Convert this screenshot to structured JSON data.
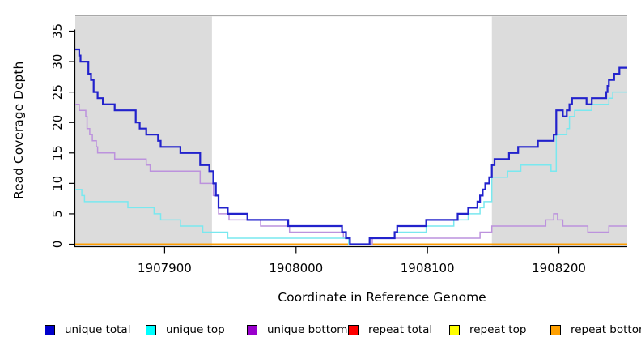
{
  "chart_data": {
    "type": "line",
    "subtype": "step-coverage-plot",
    "title": "",
    "xlabel": "Coordinate in Reference Genome",
    "ylabel": "Read Coverage Depth",
    "x_range": [
      1907832,
      1908252
    ],
    "y_range": [
      0,
      35
    ],
    "x_ticks": [
      "1907900",
      "1908000",
      "1908100",
      "1908200"
    ],
    "x_tick_values": [
      1907900,
      1908000,
      1908100,
      1908200
    ],
    "y_ticks": [
      "0",
      "5",
      "10",
      "15",
      "20",
      "25",
      "30",
      "35"
    ],
    "y_tick_values": [
      0,
      5,
      10,
      15,
      20,
      25,
      30,
      35
    ],
    "grid": false,
    "shade_color": "#dcdcdc",
    "top_border_color": "#a8a8a8",
    "shaded_regions": [
      {
        "x0": 1907832,
        "x1": 1907936
      },
      {
        "x0": 1908149,
        "x1": 1908252
      }
    ],
    "series": [
      {
        "name": "unique total",
        "color": "#2222cc",
        "legend_color": "#0000cc",
        "width": 2.2,
        "z": 6,
        "points": [
          [
            1907832,
            32
          ],
          [
            1907835,
            31
          ],
          [
            1907836,
            30
          ],
          [
            1907842,
            28
          ],
          [
            1907844,
            27
          ],
          [
            1907846,
            25
          ],
          [
            1907849,
            24
          ],
          [
            1907853,
            23
          ],
          [
            1907862,
            22
          ],
          [
            1907878,
            20
          ],
          [
            1907881,
            19
          ],
          [
            1907886,
            18
          ],
          [
            1907895,
            17
          ],
          [
            1907897,
            16
          ],
          [
            1907912,
            15
          ],
          [
            1907927,
            13
          ],
          [
            1907934,
            12
          ],
          [
            1907937,
            10
          ],
          [
            1907939,
            8
          ],
          [
            1907941,
            6
          ],
          [
            1907948,
            5
          ],
          [
            1907963,
            4
          ],
          [
            1907994,
            3
          ],
          [
            1908035,
            2
          ],
          [
            1908038,
            1
          ],
          [
            1908041,
            0
          ],
          [
            1908056,
            1
          ],
          [
            1908075,
            2
          ],
          [
            1908077,
            3
          ],
          [
            1908099,
            4
          ],
          [
            1908123,
            5
          ],
          [
            1908131,
            6
          ],
          [
            1908138,
            7
          ],
          [
            1908140,
            8
          ],
          [
            1908142,
            9
          ],
          [
            1908144,
            10
          ],
          [
            1908147,
            11
          ],
          [
            1908149,
            13
          ],
          [
            1908151,
            14
          ],
          [
            1908162,
            15
          ],
          [
            1908169,
            16
          ],
          [
            1908184,
            17
          ],
          [
            1908196,
            18
          ],
          [
            1908198,
            22
          ],
          [
            1908203,
            21
          ],
          [
            1908206,
            22
          ],
          [
            1908208,
            23
          ],
          [
            1908210,
            24
          ],
          [
            1908221,
            23
          ],
          [
            1908225,
            24
          ],
          [
            1908236,
            25
          ],
          [
            1908237,
            26
          ],
          [
            1908238,
            27
          ],
          [
            1908242,
            28
          ],
          [
            1908246,
            29
          ]
        ]
      },
      {
        "name": "unique top",
        "color": "#79e8ef",
        "legend_color": "#00ffff",
        "width": 1.5,
        "z": 5,
        "points": [
          [
            1907832,
            9
          ],
          [
            1907837,
            8
          ],
          [
            1907839,
            7
          ],
          [
            1907872,
            6
          ],
          [
            1907892,
            5
          ],
          [
            1907897,
            4
          ],
          [
            1907912,
            3
          ],
          [
            1907929,
            2
          ],
          [
            1907948,
            1
          ],
          [
            1908040,
            0
          ],
          [
            1908056,
            1
          ],
          [
            1908075,
            2
          ],
          [
            1908099,
            3
          ],
          [
            1908120,
            4
          ],
          [
            1908131,
            5
          ],
          [
            1908140,
            6
          ],
          [
            1908143,
            7
          ],
          [
            1908149,
            11
          ],
          [
            1908161,
            12
          ],
          [
            1908171,
            13
          ],
          [
            1908194,
            12
          ],
          [
            1908198,
            18
          ],
          [
            1908206,
            19
          ],
          [
            1908208,
            21
          ],
          [
            1908212,
            22
          ],
          [
            1908225,
            23
          ],
          [
            1908238,
            24
          ],
          [
            1908241,
            25
          ]
        ]
      },
      {
        "name": "unique bottom",
        "color": "#bc92dd",
        "legend_color": "#9900cc",
        "width": 1.5,
        "z": 4,
        "points": [
          [
            1907832,
            23
          ],
          [
            1907835,
            22
          ],
          [
            1907840,
            21
          ],
          [
            1907841,
            19
          ],
          [
            1907843,
            18
          ],
          [
            1907845,
            17
          ],
          [
            1907848,
            16
          ],
          [
            1907849,
            15
          ],
          [
            1907862,
            14
          ],
          [
            1907886,
            13
          ],
          [
            1907889,
            12
          ],
          [
            1907927,
            10
          ],
          [
            1907937,
            8
          ],
          [
            1907941,
            5
          ],
          [
            1907949,
            4
          ],
          [
            1907973,
            3
          ],
          [
            1907995,
            2
          ],
          [
            1908036,
            1
          ],
          [
            1908041,
            0
          ],
          [
            1908058,
            1
          ],
          [
            1908140,
            2
          ],
          [
            1908149,
            3
          ],
          [
            1908190,
            4
          ],
          [
            1908196,
            5
          ],
          [
            1908199,
            4
          ],
          [
            1908203,
            3
          ],
          [
            1908222,
            2
          ],
          [
            1908238,
            3
          ]
        ]
      },
      {
        "name": "repeat total",
        "color": "#dd0000",
        "legend_color": "#ff0000",
        "width": 1.5,
        "z": 1,
        "points": [
          [
            1907832,
            0
          ]
        ]
      },
      {
        "name": "repeat top",
        "color": "#ffff00",
        "legend_color": "#ffff00",
        "width": 1.5,
        "z": 2,
        "points": [
          [
            1907832,
            0
          ]
        ]
      },
      {
        "name": "repeat bottom",
        "color": "#ff9d00",
        "legend_color": "#ffa000",
        "width": 1.8,
        "z": 3,
        "points": [
          [
            1907832,
            0
          ]
        ]
      }
    ]
  },
  "legend": {
    "items": [
      {
        "label": "unique total",
        "color": "#0000cc"
      },
      {
        "label": "unique top",
        "color": "#00ffff"
      },
      {
        "label": "unique bottom",
        "color": "#9900cc"
      },
      {
        "label": "repeat total",
        "color": "#ff0000"
      },
      {
        "label": "repeat top",
        "color": "#ffff00"
      },
      {
        "label": "repeat bottom",
        "color": "#ffa000"
      }
    ]
  },
  "labels": {
    "xlabel": "Coordinate in Reference Genome",
    "ylabel": "Read Coverage Depth"
  }
}
